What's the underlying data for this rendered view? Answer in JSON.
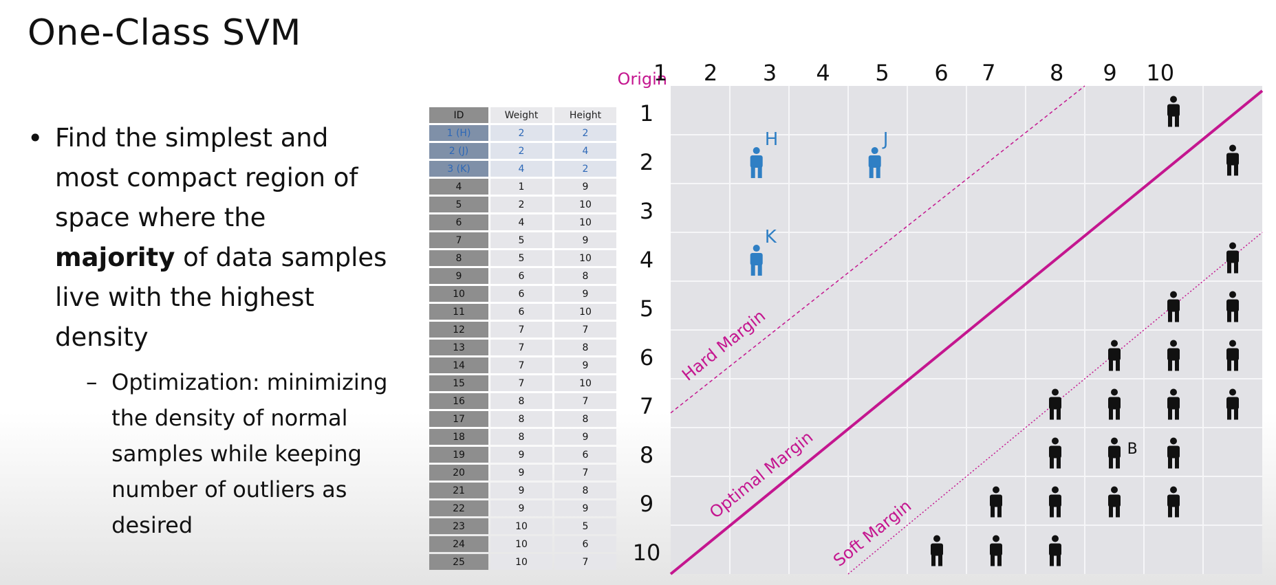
{
  "slide": {
    "title": "One-Class SVM",
    "bullet_main_before": "Find the simplest and most compact region of space where the ",
    "bullet_main_bold": "majority",
    "bullet_main_after": " of data samples live with the highest density",
    "bullet_sub": "Optimization: minimizing the density of normal samples while keeping number of outliers as desired"
  },
  "table": {
    "headers": [
      "ID",
      "Weight",
      "Height"
    ],
    "rows": [
      {
        "id": "1 (H)",
        "weight": "2",
        "height": "2",
        "highlight": true
      },
      {
        "id": "2 (J)",
        "weight": "2",
        "height": "4",
        "highlight": true
      },
      {
        "id": "3 (K)",
        "weight": "4",
        "height": "2",
        "highlight": true
      },
      {
        "id": "4",
        "weight": "1",
        "height": "9"
      },
      {
        "id": "5",
        "weight": "2",
        "height": "10"
      },
      {
        "id": "6",
        "weight": "4",
        "height": "10"
      },
      {
        "id": "7",
        "weight": "5",
        "height": "9"
      },
      {
        "id": "8",
        "weight": "5",
        "height": "10"
      },
      {
        "id": "9",
        "weight": "6",
        "height": "8"
      },
      {
        "id": "10",
        "weight": "6",
        "height": "9"
      },
      {
        "id": "11",
        "weight": "6",
        "height": "10"
      },
      {
        "id": "12",
        "weight": "7",
        "height": "7"
      },
      {
        "id": "13",
        "weight": "7",
        "height": "8"
      },
      {
        "id": "14",
        "weight": "7",
        "height": "9"
      },
      {
        "id": "15",
        "weight": "7",
        "height": "10"
      },
      {
        "id": "16",
        "weight": "8",
        "height": "7"
      },
      {
        "id": "17",
        "weight": "8",
        "height": "8"
      },
      {
        "id": "18",
        "weight": "8",
        "height": "9"
      },
      {
        "id": "19",
        "weight": "9",
        "height": "6"
      },
      {
        "id": "20",
        "weight": "9",
        "height": "7"
      },
      {
        "id": "21",
        "weight": "9",
        "height": "8"
      },
      {
        "id": "22",
        "weight": "9",
        "height": "9"
      },
      {
        "id": "23",
        "weight": "10",
        "height": "5"
      },
      {
        "id": "24",
        "weight": "10",
        "height": "6"
      },
      {
        "id": "25",
        "weight": "10",
        "height": "7"
      }
    ]
  },
  "diagram": {
    "origin_label": "Origin",
    "col_labels": [
      "1",
      "2",
      "3",
      "4",
      "5",
      "6",
      "7",
      "8",
      "9",
      "10"
    ],
    "row_labels": [
      "1",
      "2",
      "3",
      "4",
      "5",
      "6",
      "7",
      "8",
      "9",
      "10"
    ],
    "hard_margin_label": "Hard Margin",
    "optimal_margin_label": "Optimal Margin",
    "soft_margin_label": "Soft Margin",
    "point_b_label": "B",
    "blue_points": [
      {
        "label": "H",
        "col": 2,
        "row": 2
      },
      {
        "label": "J",
        "col": 4,
        "row": 2
      },
      {
        "label": "K",
        "col": 2,
        "row": 4
      }
    ],
    "black_points": [
      {
        "col": 9,
        "row": 1
      },
      {
        "col": 10,
        "row": 2
      },
      {
        "col": 10,
        "row": 4
      },
      {
        "col": 9,
        "row": 5
      },
      {
        "col": 10,
        "row": 5
      },
      {
        "col": 8,
        "row": 6
      },
      {
        "col": 9,
        "row": 6
      },
      {
        "col": 10,
        "row": 6
      },
      {
        "col": 7,
        "row": 7
      },
      {
        "col": 8,
        "row": 7
      },
      {
        "col": 9,
        "row": 7
      },
      {
        "col": 10,
        "row": 7
      },
      {
        "col": 7,
        "row": 8
      },
      {
        "col": 8,
        "row": 8
      },
      {
        "col": 9,
        "row": 8
      },
      {
        "col": 6,
        "row": 9
      },
      {
        "col": 7,
        "row": 9
      },
      {
        "col": 8,
        "row": 9
      },
      {
        "col": 9,
        "row": 9
      },
      {
        "col": 5,
        "row": 10
      },
      {
        "col": 6,
        "row": 10
      },
      {
        "col": 7,
        "row": 10
      }
    ],
    "colors": {
      "margin": "#c4168f",
      "blue_person": "#2f7fc4",
      "black_person": "#111111",
      "grid_bg": "#e2e2e6",
      "grid_line": "#f6f6f8"
    }
  }
}
